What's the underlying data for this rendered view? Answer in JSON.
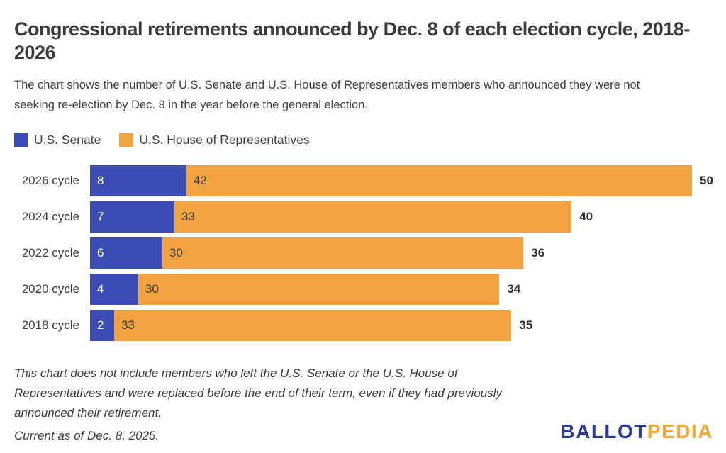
{
  "header": {
    "title": "Congressional retirements announced by Dec. 8 of each election cycle, 2018-2026",
    "subtitle": "The chart shows the number of U.S. Senate and U.S. House of Representatives members who announced they were not seeking re-election by Dec. 8 in the year before the general election."
  },
  "legend": [
    {
      "label": "U.S. Senate",
      "color": "#3b4cb5"
    },
    {
      "label": "U.S. House of Representatives",
      "color": "#f0a33e"
    }
  ],
  "chart_data": {
    "type": "bar",
    "orientation": "horizontal",
    "stacked": true,
    "categories": [
      "2026 cycle",
      "2024 cycle",
      "2022 cycle",
      "2020 cycle",
      "2018 cycle"
    ],
    "series": [
      {
        "name": "U.S. Senate",
        "color": "#3b4cb5",
        "values": [
          8,
          7,
          6,
          4,
          2
        ]
      },
      {
        "name": "U.S. House of Representatives",
        "color": "#f0a33e",
        "values": [
          42,
          33,
          30,
          30,
          33
        ]
      }
    ],
    "totals": [
      50,
      40,
      36,
      34,
      35
    ],
    "xlim": [
      0,
      50
    ],
    "grid": false,
    "value_labels": "inside-start",
    "total_labels": "outside-end",
    "legend_position": "top-left"
  },
  "footnote": "This chart does not include members who left the U.S. Senate or the U.S. House of Representatives and were replaced before the end of their term, even if they had previously announced their retirement.",
  "current_as_of": "Current as of Dec. 8, 2025.",
  "logo": {
    "part1": "BALLOT",
    "part2": "PEDIA",
    "part1_color": "#2b3b94",
    "part2_color": "#f5a633"
  }
}
